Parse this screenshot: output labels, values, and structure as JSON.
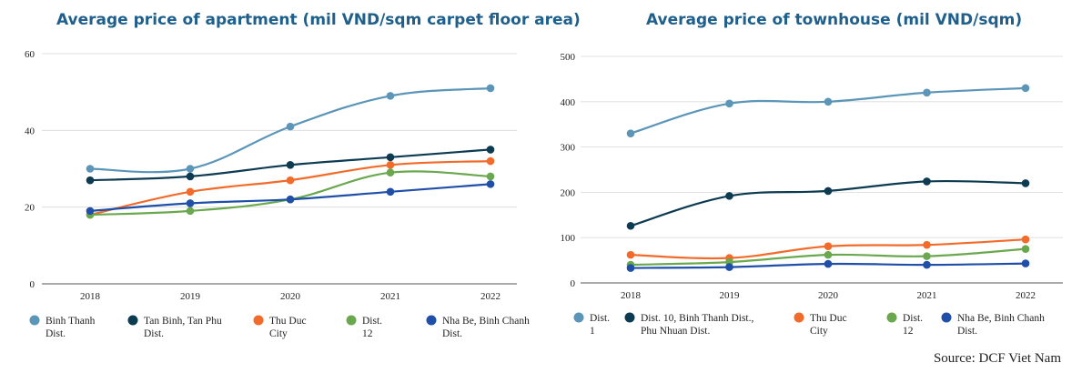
{
  "chart_data": [
    {
      "type": "line",
      "title": "Average price of apartment (mil VND/sqm carpet floor area)",
      "x": [
        "2018",
        "2019",
        "2020",
        "2021",
        "2022"
      ],
      "ylim": [
        0,
        60
      ],
      "yticks": [
        0,
        20,
        40,
        60
      ],
      "grid": true,
      "legend_position": "bottom",
      "series": [
        {
          "name": "Binh Thanh Dist.",
          "legend_lines": [
            "Binh Thanh",
            "Dist."
          ],
          "color": "#5b95b8",
          "values": [
            30,
            30,
            41,
            49,
            51
          ]
        },
        {
          "name": "Tan Binh, Tan Phu Dist.",
          "legend_lines": [
            "Tan Binh, Tan Phu",
            "Dist."
          ],
          "color": "#0d3b52",
          "values": [
            27,
            28,
            31,
            33,
            35
          ]
        },
        {
          "name": "Thu Duc City",
          "legend_lines": [
            "Thu Duc",
            "City"
          ],
          "color": "#f26b2a",
          "values": [
            18,
            24,
            27,
            31,
            32
          ]
        },
        {
          "name": "Dist. 12",
          "legend_lines": [
            "Dist.",
            "12"
          ],
          "color": "#6aa84f",
          "values": [
            18,
            19,
            22,
            29,
            28
          ]
        },
        {
          "name": "Nha Be, Binh Chanh Dist.",
          "legend_lines": [
            "Nha Be, Binh Chanh",
            "Dist."
          ],
          "color": "#1f4fa8",
          "values": [
            19,
            21,
            22,
            24,
            26
          ]
        }
      ]
    },
    {
      "type": "line",
      "title": "Average price of townhouse (mil VND/sqm)",
      "x": [
        "2018",
        "2019",
        "2020",
        "2021",
        "2022"
      ],
      "ylim": [
        0,
        500
      ],
      "yticks": [
        0,
        100,
        200,
        300,
        400,
        500
      ],
      "grid": true,
      "legend_position": "bottom",
      "series": [
        {
          "name": "Dist. 1",
          "legend_lines": [
            "Dist.",
            "1"
          ],
          "color": "#5b95b8",
          "values": [
            330,
            396,
            400,
            420,
            430
          ]
        },
        {
          "name": "Dist. 10, Binh Thanh Dist., Phu Nhuan Dist.",
          "legend_lines": [
            "Dist. 10, Binh Thanh Dist.,",
            "Phu Nhuan Dist."
          ],
          "color": "#0d3b52",
          "values": [
            126,
            192,
            203,
            224,
            220
          ]
        },
        {
          "name": "Thu Duc City",
          "legend_lines": [
            "Thu Duc",
            "City"
          ],
          "color": "#f26b2a",
          "values": [
            62,
            55,
            81,
            84,
            96
          ]
        },
        {
          "name": "Dist. 12",
          "legend_lines": [
            "Dist.",
            "12"
          ],
          "color": "#6aa84f",
          "values": [
            40,
            46,
            62,
            59,
            75
          ]
        },
        {
          "name": "Nha Be, Binh Chanh Dist.",
          "legend_lines": [
            "Nha Be, Binh Chanh",
            "Dist."
          ],
          "color": "#1f4fa8",
          "values": [
            33,
            35,
            42,
            40,
            43
          ]
        }
      ]
    }
  ],
  "source": "Source: DCF Viet Nam"
}
